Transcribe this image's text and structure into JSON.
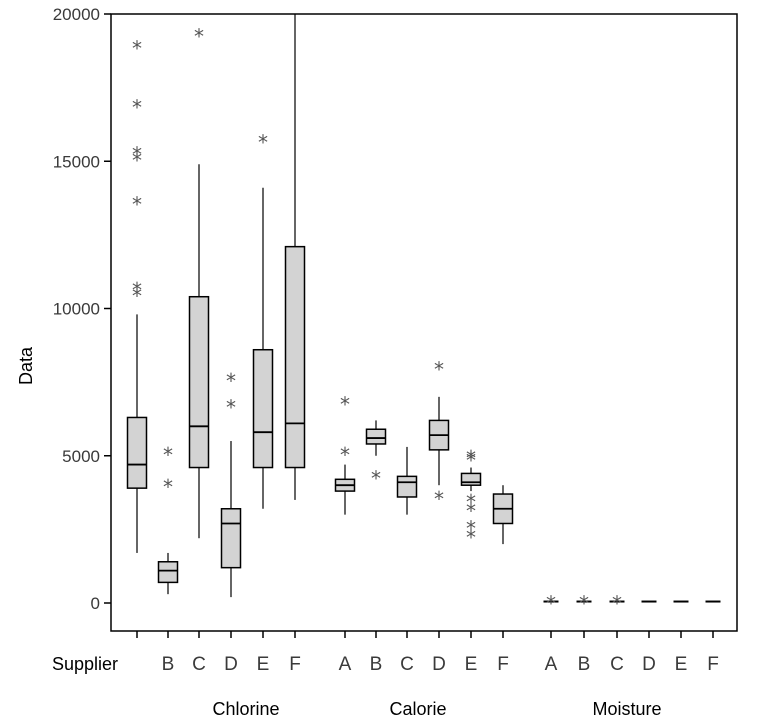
{
  "chart_data": {
    "type": "boxplot",
    "ylabel": "Data",
    "xlabel_prefix": "Supplier",
    "ylim": [
      -1000,
      20000
    ],
    "yticks": [
      0,
      5000,
      10000,
      15000,
      20000
    ],
    "ytick_labels": [
      "0",
      "5000",
      "10000",
      "15000",
      "20000"
    ],
    "groups": [
      {
        "label": "Chlorine",
        "boxes": [
          {
            "supplier": "A",
            "tick_label": "",
            "min": 1700,
            "q1": 3900,
            "median": 4700,
            "q3": 6300,
            "max": 9800,
            "outliers": [
              10500,
              10700,
              13600,
              15100,
              15300,
              16900,
              18900
            ]
          },
          {
            "supplier": "B",
            "tick_label": "B",
            "min": 300,
            "q1": 700,
            "median": 1100,
            "q3": 1400,
            "max": 1700,
            "outliers": [
              4000,
              5100
            ]
          },
          {
            "supplier": "C",
            "tick_label": "C",
            "min": 2200,
            "q1": 4600,
            "median": 6000,
            "q3": 10400,
            "max": 14900,
            "outliers": [
              19300
            ]
          },
          {
            "supplier": "D",
            "tick_label": "D",
            "min": 200,
            "q1": 1200,
            "median": 2700,
            "q3": 3200,
            "max": 5500,
            "outliers": [
              6700,
              7600
            ]
          },
          {
            "supplier": "E",
            "tick_label": "E",
            "min": 3200,
            "q1": 4600,
            "median": 5800,
            "q3": 8600,
            "max": 14100,
            "outliers": [
              15700
            ]
          },
          {
            "supplier": "F",
            "tick_label": "F",
            "min": 3500,
            "q1": 4600,
            "median": 6100,
            "q3": 12100,
            "max": 20000,
            "outliers": []
          }
        ]
      },
      {
        "label": "Calorie",
        "boxes": [
          {
            "supplier": "A",
            "tick_label": "A",
            "min": 3000,
            "q1": 3800,
            "median": 4000,
            "q3": 4200,
            "max": 4700,
            "outliers": [
              5100,
              6800
            ]
          },
          {
            "supplier": "B",
            "tick_label": "B",
            "min": 5000,
            "q1": 5400,
            "median": 5600,
            "q3": 5900,
            "max": 6200,
            "outliers": [
              4300
            ]
          },
          {
            "supplier": "C",
            "tick_label": "C",
            "min": 3000,
            "q1": 3600,
            "median": 4100,
            "q3": 4300,
            "max": 5300,
            "outliers": []
          },
          {
            "supplier": "D",
            "tick_label": "D",
            "min": 4000,
            "q1": 5200,
            "median": 5700,
            "q3": 6200,
            "max": 7000,
            "outliers": [
              3600,
              8000
            ]
          },
          {
            "supplier": "E",
            "tick_label": "E",
            "min": 3800,
            "q1": 4000,
            "median": 4100,
            "q3": 4400,
            "max": 4600,
            "outliers": [
              2300,
              2600,
              3200,
              3500,
              4900,
              5000
            ]
          },
          {
            "supplier": "F",
            "tick_label": "F",
            "min": 2000,
            "q1": 2700,
            "median": 3200,
            "q3": 3700,
            "max": 4000,
            "outliers": []
          }
        ]
      },
      {
        "label": "Moisture",
        "boxes": [
          {
            "supplier": "A",
            "tick_label": "A",
            "min": 50,
            "q1": 50,
            "median": 50,
            "q3": 50,
            "max": 50,
            "outliers": [
              50
            ]
          },
          {
            "supplier": "B",
            "tick_label": "B",
            "min": 50,
            "q1": 50,
            "median": 50,
            "q3": 50,
            "max": 50,
            "outliers": [
              50
            ]
          },
          {
            "supplier": "C",
            "tick_label": "C",
            "min": 50,
            "q1": 50,
            "median": 50,
            "q3": 50,
            "max": 50,
            "outliers": [
              50
            ]
          },
          {
            "supplier": "D",
            "tick_label": "D",
            "min": 50,
            "q1": 50,
            "median": 50,
            "q3": 50,
            "max": 50,
            "outliers": []
          },
          {
            "supplier": "E",
            "tick_label": "E",
            "min": 50,
            "q1": 50,
            "median": 50,
            "q3": 50,
            "max": 50,
            "outliers": []
          },
          {
            "supplier": "F",
            "tick_label": "F",
            "min": 50,
            "q1": 50,
            "median": 50,
            "q3": 50,
            "max": 50,
            "outliers": []
          }
        ]
      }
    ],
    "grid": false,
    "colors": {
      "box_fill": "#d3d3d3",
      "stroke": "#000000",
      "outlier": "#555555",
      "axis": "#000000"
    }
  }
}
